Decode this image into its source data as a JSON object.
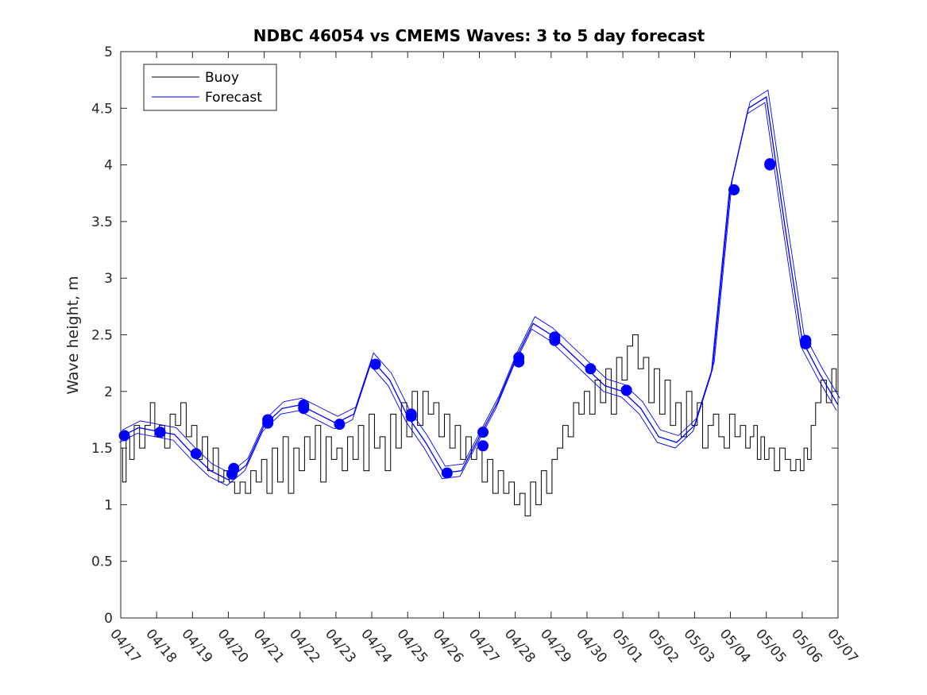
{
  "chart_data": {
    "type": "line",
    "title": "NDBC 46054 vs CMEMS Waves: 3 to 5 day forecast",
    "xlabel": "",
    "ylabel": "Wave height, m",
    "ylim": [
      0,
      5
    ],
    "yticks": [
      "0",
      "0.5",
      "1",
      "1.5",
      "2",
      "2.5",
      "3",
      "3.5",
      "4",
      "4.5",
      "5"
    ],
    "xlim": [
      0,
      20
    ],
    "xticks": [
      "04/17",
      "04/18",
      "04/19",
      "04/20",
      "04/21",
      "04/22",
      "04/23",
      "04/24",
      "04/25",
      "04/26",
      "04/27",
      "04/28",
      "04/29",
      "04/30",
      "05/01",
      "05/02",
      "05/03",
      "05/04",
      "05/05",
      "05/06",
      "05/07"
    ],
    "grid": false,
    "legend": {
      "location": "top-left",
      "entries": [
        "Buoy",
        "Forecast"
      ]
    },
    "colors": {
      "buoy": "#000000",
      "forecast": "#0000ff"
    },
    "series": [
      {
        "name": "Buoy",
        "x": [
          0,
          0.1,
          0.2,
          0.3,
          0.45,
          0.6,
          0.75,
          0.9,
          1.0,
          1.15,
          1.3,
          1.45,
          1.6,
          1.75,
          1.9,
          2.05,
          2.2,
          2.35,
          2.5,
          2.65,
          2.8,
          2.95,
          3.1,
          3.25,
          3.4,
          3.55,
          3.7,
          3.85,
          4.0,
          4.15,
          4.3,
          4.45,
          4.6,
          4.75,
          4.9,
          5.05,
          5.2,
          5.35,
          5.5,
          5.65,
          5.8,
          5.95,
          6.1,
          6.25,
          6.4,
          6.55,
          6.7,
          6.85,
          7.0,
          7.15,
          7.3,
          7.45,
          7.6,
          7.75,
          7.9,
          8.05,
          8.2,
          8.35,
          8.5,
          8.65,
          8.8,
          8.95,
          9.1,
          9.25,
          9.4,
          9.55,
          9.7,
          9.85,
          10.0,
          10.15,
          10.3,
          10.45,
          10.6,
          10.75,
          10.9,
          11.05,
          11.2,
          11.35,
          11.5,
          11.65,
          11.8,
          11.95,
          12.1,
          12.25,
          12.4,
          12.55,
          12.7,
          12.85,
          13.0,
          13.15,
          13.3,
          13.45,
          13.6,
          13.75,
          13.9,
          14.05,
          14.2,
          14.35,
          14.5,
          14.65,
          14.8,
          14.95,
          15.1,
          15.25,
          15.4,
          15.55,
          15.7,
          15.85,
          16.0,
          16.15,
          16.3,
          16.45,
          16.6,
          16.75,
          16.9,
          17.05,
          17.2,
          17.35,
          17.5,
          17.6,
          17.7,
          17.8,
          17.9,
          18.0,
          18.15,
          18.3,
          18.45,
          18.6,
          18.75,
          18.9,
          19.0,
          19.1,
          19.2,
          19.3,
          19.45,
          19.6,
          19.75,
          19.9,
          20.0
        ],
        "y": [
          1.5,
          1.2,
          1.6,
          1.4,
          1.7,
          1.5,
          1.7,
          1.9,
          1.6,
          1.7,
          1.5,
          1.8,
          1.7,
          1.9,
          1.6,
          1.7,
          1.4,
          1.6,
          1.3,
          1.5,
          1.2,
          1.3,
          1.2,
          1.1,
          1.2,
          1.1,
          1.3,
          1.2,
          1.4,
          1.1,
          1.5,
          1.2,
          1.6,
          1.1,
          1.5,
          1.3,
          1.6,
          1.4,
          1.7,
          1.2,
          1.6,
          1.4,
          1.5,
          1.3,
          1.6,
          1.4,
          1.7,
          1.3,
          1.8,
          1.5,
          1.6,
          1.3,
          1.8,
          1.5,
          1.9,
          1.6,
          2.0,
          1.7,
          2.0,
          1.8,
          1.9,
          1.6,
          1.8,
          1.5,
          1.7,
          1.4,
          1.6,
          1.4,
          1.5,
          1.2,
          1.4,
          1.1,
          1.3,
          1.1,
          1.2,
          1.0,
          1.1,
          0.9,
          1.2,
          1.0,
          1.3,
          1.1,
          1.4,
          1.5,
          1.7,
          1.6,
          1.9,
          1.8,
          2.0,
          1.8,
          2.1,
          1.9,
          2.2,
          1.8,
          2.3,
          2.1,
          2.4,
          2.5,
          2.2,
          2.3,
          1.9,
          2.2,
          1.8,
          2.1,
          1.7,
          1.9,
          1.6,
          2.0,
          1.7,
          1.9,
          1.5,
          1.7,
          1.8,
          1.6,
          1.5,
          1.8,
          1.6,
          1.7,
          1.5,
          1.6,
          1.7,
          1.4,
          1.6,
          1.4,
          1.5,
          1.3,
          1.5,
          1.4,
          1.3,
          1.4,
          1.3,
          1.5,
          1.4,
          1.7,
          1.9,
          2.1,
          1.9,
          2.2,
          2.0
        ],
        "note": ""
      },
      {
        "name": "Forecast",
        "x": [
          0,
          0.5,
          1.0,
          1.5,
          2.0,
          2.5,
          3.0,
          3.5,
          4.0,
          4.5,
          5.0,
          5.5,
          6.0,
          6.5,
          7.0,
          7.5,
          8.0,
          8.5,
          9.0,
          9.5,
          10.0,
          10.5,
          11.0,
          11.5,
          12.0,
          12.5,
          13.0,
          13.5,
          14.0,
          14.5,
          15.0,
          15.5,
          16.0,
          16.5,
          17.0,
          17.5,
          18.0,
          18.5,
          19.0,
          19.5,
          20.0
        ],
        "y": [
          1.6,
          1.68,
          1.65,
          1.62,
          1.45,
          1.3,
          1.22,
          1.35,
          1.7,
          1.85,
          1.88,
          1.8,
          1.72,
          1.8,
          2.28,
          2.1,
          1.78,
          1.55,
          1.28,
          1.3,
          1.6,
          1.9,
          2.28,
          2.6,
          2.5,
          2.35,
          2.2,
          2.05,
          2.0,
          1.85,
          1.6,
          1.55,
          1.7,
          2.2,
          3.8,
          4.5,
          4.6,
          3.5,
          2.45,
          2.15,
          1.88
        ]
      }
    ],
    "markers": {
      "x": [
        0.1,
        1.1,
        2.1,
        3.1,
        3.15,
        4.1,
        4.1,
        5.1,
        5.1,
        6.1,
        7.1,
        8.1,
        8.1,
        9.1,
        10.1,
        10.1,
        11.1,
        11.1,
        12.1,
        12.1,
        13.1,
        14.1,
        14.1,
        17.1,
        18.1,
        18.1,
        19.1,
        19.1
      ],
      "y": [
        1.61,
        1.64,
        1.45,
        1.27,
        1.32,
        1.72,
        1.75,
        1.85,
        1.88,
        1.71,
        2.24,
        1.78,
        1.8,
        1.28,
        1.52,
        1.64,
        2.26,
        2.3,
        2.45,
        2.48,
        2.2,
        2.01,
        2.01,
        3.78,
        4.0,
        4.01,
        2.42,
        2.45
      ]
    }
  }
}
